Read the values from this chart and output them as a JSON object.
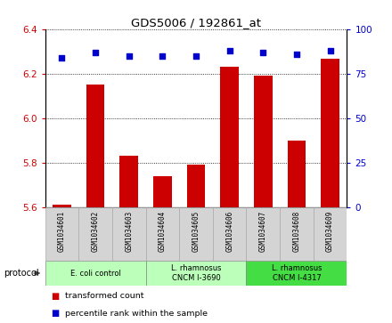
{
  "title": "GDS5006 / 192861_at",
  "samples": [
    "GSM1034601",
    "GSM1034602",
    "GSM1034603",
    "GSM1034604",
    "GSM1034605",
    "GSM1034606",
    "GSM1034607",
    "GSM1034608",
    "GSM1034609"
  ],
  "transformed_count": [
    5.61,
    6.15,
    5.83,
    5.74,
    5.79,
    6.23,
    6.19,
    5.9,
    6.27
  ],
  "percentile_rank": [
    84,
    87,
    85,
    85,
    85,
    88,
    87,
    86,
    88
  ],
  "ylim_left": [
    5.6,
    6.4
  ],
  "ylim_right": [
    0,
    100
  ],
  "yticks_left": [
    5.6,
    5.8,
    6.0,
    6.2,
    6.4
  ],
  "yticks_right": [
    0,
    25,
    50,
    75,
    100
  ],
  "bar_color": "#cc0000",
  "scatter_color": "#0000cc",
  "grid_color": "#000000",
  "group_spans": [
    {
      "start": 0,
      "end": 2,
      "label": "E. coli control",
      "color": "#bbffbb"
    },
    {
      "start": 3,
      "end": 5,
      "label": "L. rhamnosus\nCNCM I-3690",
      "color": "#bbffbb"
    },
    {
      "start": 6,
      "end": 8,
      "label": "L. rhamnosus\nCNCM I-4317",
      "color": "#44dd44"
    }
  ],
  "legend_items": [
    {
      "label": "transformed count",
      "color": "#cc0000"
    },
    {
      "label": "percentile rank within the sample",
      "color": "#0000cc"
    }
  ],
  "protocol_label": "protocol",
  "background_color": "#ffffff",
  "tick_color_left": "#cc0000",
  "tick_color_right": "#0000cc",
  "sample_bg_color": "#d4d4d4",
  "sample_border_color": "#aaaaaa"
}
